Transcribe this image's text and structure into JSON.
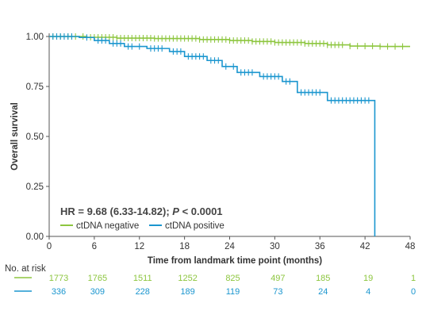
{
  "chart_data": {
    "type": "line",
    "title": "",
    "xlabel": "Time from landmark time point (months)",
    "ylabel": "Overall survival",
    "xlim": [
      0,
      48
    ],
    "ylim": [
      0,
      1
    ],
    "x_ticks": [
      0,
      6,
      12,
      18,
      24,
      30,
      36,
      42,
      48
    ],
    "x_tick_labels": [
      "0",
      "6",
      "12",
      "18",
      "24",
      "30",
      "36",
      "42",
      "48"
    ],
    "y_ticks": [
      0,
      0.25,
      0.5,
      0.75,
      1
    ],
    "y_tick_labels": [
      "0.00",
      "0.25",
      "0.50",
      "0.75",
      "1.00"
    ],
    "grid": false,
    "legend": {
      "placement": "bottom-left"
    },
    "annotation": {
      "prefix": "HR = 9.68 (6.33-14.82); ",
      "p_symbol": "P",
      "suffix": " < 0.0001"
    },
    "series": [
      {
        "name": "ctDNA negative",
        "color": "#8dc63f",
        "steps": [
          [
            0,
            1.0
          ],
          [
            5,
            0.996
          ],
          [
            9,
            0.992
          ],
          [
            14,
            0.99
          ],
          [
            20,
            0.985
          ],
          [
            24,
            0.98
          ],
          [
            27,
            0.975
          ],
          [
            30,
            0.97
          ],
          [
            34,
            0.965
          ],
          [
            37,
            0.958
          ],
          [
            40,
            0.952
          ],
          [
            44,
            0.95
          ],
          [
            48,
            0.95
          ]
        ],
        "censor_times": [
          0.5,
          1,
          1.5,
          2,
          2.5,
          3,
          3.5,
          4.5,
          5.5,
          6,
          6.5,
          7,
          7.5,
          8,
          8.5,
          9,
          9.5,
          10,
          10.5,
          11,
          11.5,
          12,
          12.5,
          13,
          13.5,
          14,
          14.5,
          15,
          15.5,
          16,
          16.5,
          17,
          17.5,
          18,
          18.5,
          19,
          19.5,
          20,
          20.5,
          21,
          21.5,
          22,
          22.5,
          23,
          23.5,
          24,
          24.5,
          25,
          25.5,
          26,
          26.5,
          27,
          27.5,
          28,
          28.5,
          29,
          29.5,
          30,
          30.5,
          31,
          31.5,
          32,
          32.5,
          33,
          33.5,
          34,
          34.5,
          35,
          35.5,
          36,
          36.5,
          37,
          37.5,
          38,
          38.5,
          39,
          40,
          41,
          42,
          43,
          44,
          45,
          46,
          47
        ]
      },
      {
        "name": "ctDNA positive",
        "color": "#1b96cf",
        "steps": [
          [
            0,
            1.0
          ],
          [
            4,
            0.995
          ],
          [
            6,
            0.98
          ],
          [
            8,
            0.965
          ],
          [
            10,
            0.95
          ],
          [
            13,
            0.94
          ],
          [
            16,
            0.925
          ],
          [
            18,
            0.9
          ],
          [
            21,
            0.88
          ],
          [
            23,
            0.85
          ],
          [
            25,
            0.82
          ],
          [
            28,
            0.8
          ],
          [
            31,
            0.775
          ],
          [
            33,
            0.72
          ],
          [
            37,
            0.68
          ],
          [
            43.3,
            0.0
          ]
        ],
        "censor_times": [
          0.5,
          1,
          1.5,
          2,
          2.5,
          3,
          5,
          6.5,
          7,
          7.5,
          8.5,
          9,
          9.5,
          10.5,
          11,
          12,
          13.5,
          14,
          14.5,
          15,
          16.5,
          17,
          17.5,
          18.5,
          19,
          19.5,
          20,
          20.5,
          21.5,
          22,
          22.5,
          23.5,
          24.5,
          25.5,
          26,
          26.5,
          27,
          28.5,
          29,
          29.5,
          30,
          30.5,
          31.5,
          32,
          33.5,
          34,
          34.5,
          35,
          35.5,
          36,
          37.5,
          38,
          38.5,
          39,
          39.5,
          40,
          40.5,
          41,
          41.5,
          42,
          42.5
        ]
      }
    ]
  },
  "risk_table": {
    "title": "No. at risk",
    "rows": [
      {
        "color": "#8dc63f",
        "counts": [
          "1773",
          "1765",
          "1511",
          "1252",
          "825",
          "497",
          "185",
          "19",
          "1"
        ]
      },
      {
        "color": "#1b96cf",
        "counts": [
          "336",
          "309",
          "228",
          "189",
          "119",
          "73",
          "24",
          "4",
          "0"
        ]
      }
    ]
  }
}
